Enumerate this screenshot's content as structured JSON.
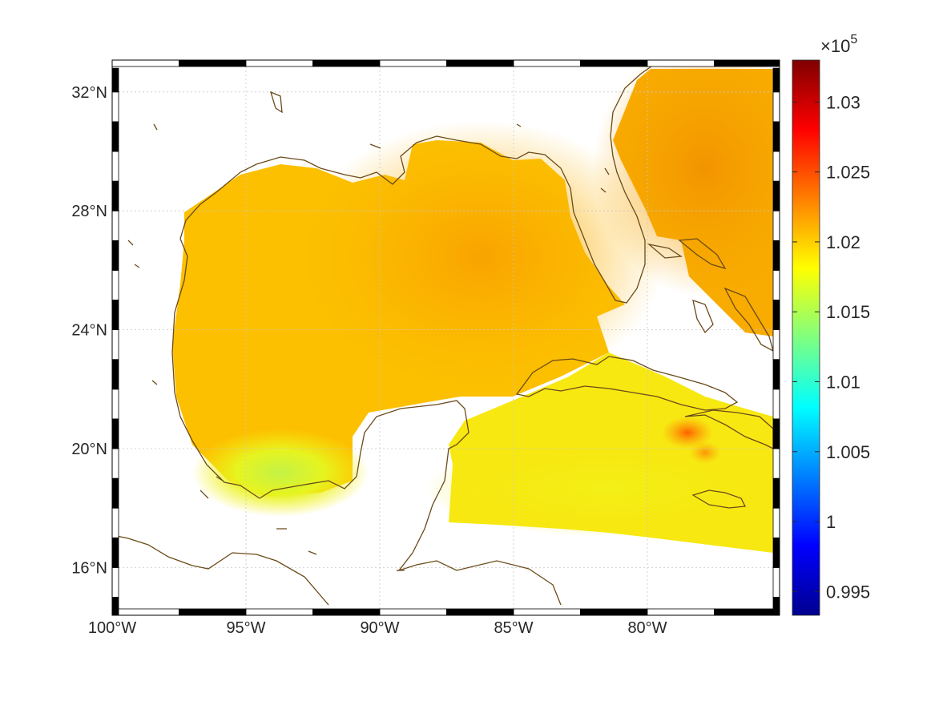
{
  "map": {
    "type": "geographic-field-map",
    "extent": {
      "lon_min": -100,
      "lon_max": -75,
      "lat_min": 14.2,
      "lat_max": 32.8
    },
    "lon_ticks": [
      {
        "value": -100,
        "label": "100°W"
      },
      {
        "value": -95,
        "label": "95°W"
      },
      {
        "value": -90,
        "label": "90°W"
      },
      {
        "value": -85,
        "label": "85°W"
      },
      {
        "value": -80,
        "label": "80°W"
      }
    ],
    "lat_ticks": [
      {
        "value": 16,
        "label": "16°N"
      },
      {
        "value": 20,
        "label": "20°N"
      },
      {
        "value": 24,
        "label": "24°N"
      },
      {
        "value": 28,
        "label": "28°N"
      },
      {
        "value": 32,
        "label": "32°N"
      }
    ],
    "grid": true,
    "coastline_color": "#6b4a1a",
    "field_colors": {
      "high": "#f9a100",
      "mid": "#fcc400",
      "low": "#f6ee14",
      "min_spot": "#c4f247",
      "max_spot": "#ff6a00"
    }
  },
  "colorbar": {
    "colormap": "jet",
    "range": [
      0.9933,
      1.033
    ],
    "exponent_label": "×10",
    "exponent_power": "5",
    "ticks": [
      {
        "value": 0.995,
        "label": "0.995"
      },
      {
        "value": 1.0,
        "label": "1"
      },
      {
        "value": 1.005,
        "label": "1.005"
      },
      {
        "value": 1.01,
        "label": "1.01"
      },
      {
        "value": 1.015,
        "label": "1.015"
      },
      {
        "value": 1.02,
        "label": "1.02"
      },
      {
        "value": 1.025,
        "label": "1.025"
      },
      {
        "value": 1.03,
        "label": "1.03"
      }
    ]
  }
}
